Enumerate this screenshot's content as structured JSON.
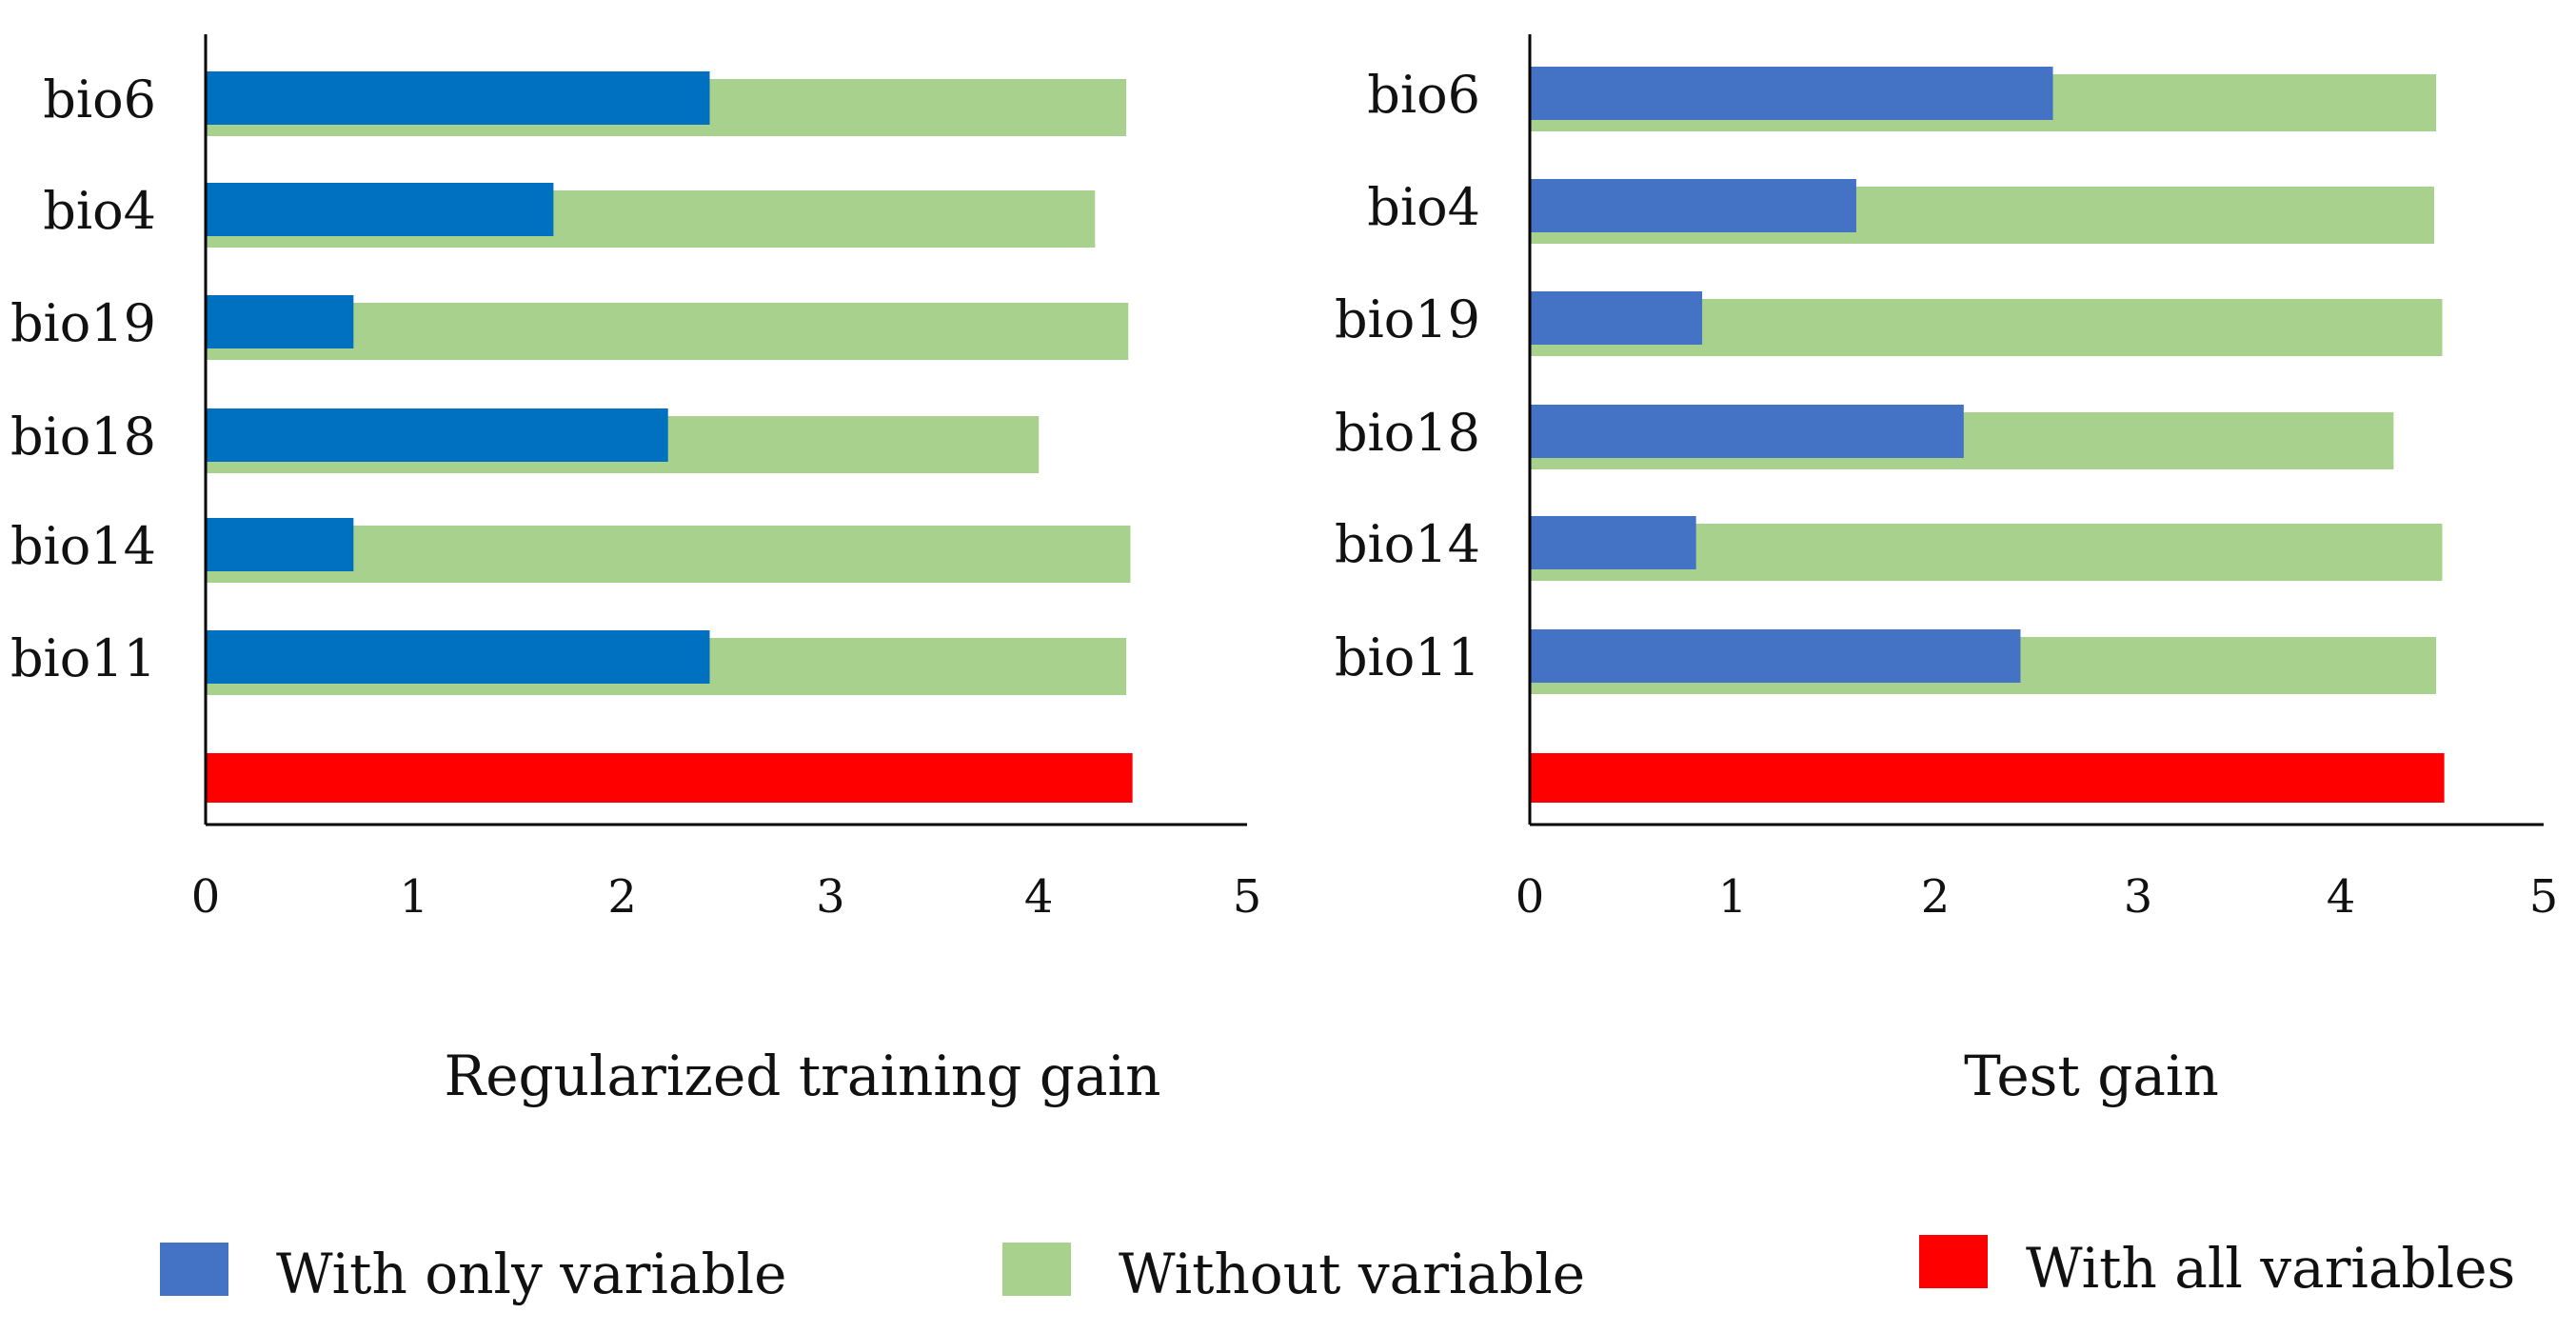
{
  "colors": {
    "with_only_left": "#0070c0",
    "with_only_right": "#4472c4",
    "without": "#a9d18e",
    "with_all": "#ff0000",
    "axis": "#000000"
  },
  "legend": {
    "with_only": "With only variable",
    "without": "Without variable",
    "with_all": "With all variables",
    "with_only_color": "#4472c4",
    "without_color": "#a9d18e",
    "with_all_color": "#ff0000"
  },
  "chart_data": [
    {
      "type": "bar",
      "orientation": "horizontal",
      "title": "",
      "xlabel": "Regularized training gain",
      "ylabel": "",
      "xlim": [
        0,
        5
      ],
      "xticks": [
        "0",
        "1",
        "2",
        "3",
        "4",
        "5"
      ],
      "categories": [
        "bio6",
        "bio4",
        "bio19",
        "bio18",
        "bio14",
        "bio11",
        ""
      ],
      "series": [
        {
          "name": "With only variable",
          "values": [
            2.42,
            1.67,
            0.71,
            2.22,
            0.71,
            2.42,
            null
          ]
        },
        {
          "name": "Without variable",
          "values": [
            4.42,
            4.27,
            4.43,
            4.0,
            4.44,
            4.42,
            null
          ]
        },
        {
          "name": "With all variables",
          "values": [
            null,
            null,
            null,
            null,
            null,
            null,
            4.45
          ]
        }
      ],
      "grid": false,
      "legend": "bottom"
    },
    {
      "type": "bar",
      "orientation": "horizontal",
      "title": "",
      "xlabel": "Test gain",
      "ylabel": "",
      "xlim": [
        0,
        5
      ],
      "xticks": [
        "0",
        "1",
        "2",
        "3",
        "4",
        "5"
      ],
      "categories": [
        "bio6",
        "bio4",
        "bio19",
        "bio18",
        "bio14",
        "bio11",
        ""
      ],
      "series": [
        {
          "name": "With only variable",
          "values": [
            2.58,
            1.61,
            0.85,
            2.14,
            0.82,
            2.42,
            null
          ]
        },
        {
          "name": "Without variable",
          "values": [
            4.47,
            4.46,
            4.5,
            4.26,
            4.5,
            4.47,
            null
          ]
        },
        {
          "name": "With all variables",
          "values": [
            null,
            null,
            null,
            null,
            null,
            null,
            4.51
          ]
        }
      ],
      "grid": false,
      "legend": "bottom"
    }
  ]
}
